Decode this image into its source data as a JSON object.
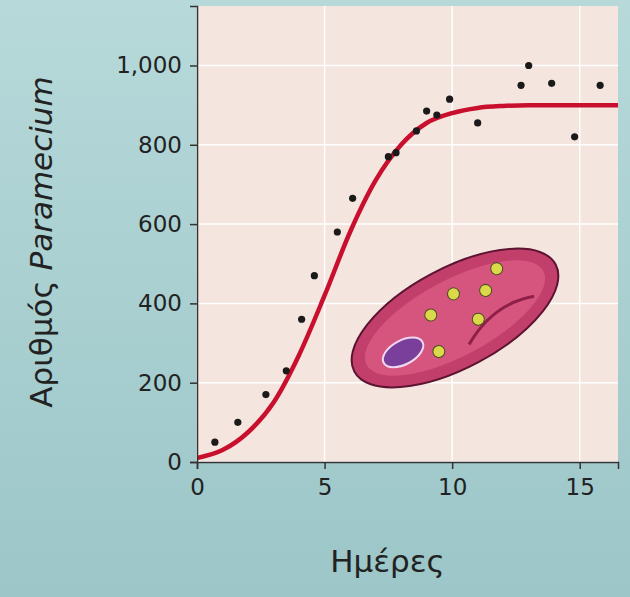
{
  "chart_data": {
    "type": "scatter",
    "x_label": "Ημέρες",
    "y_label": "Αριθμός Paramecium",
    "xlim": [
      0,
      16.5
    ],
    "xticks": [
      0,
      5,
      10,
      15
    ],
    "ylim": [
      0,
      1150
    ],
    "yticks": [
      0,
      200,
      400,
      600,
      800,
      {
        "value": 1000,
        "label": "1,000"
      }
    ],
    "grid": true,
    "series": [
      {
        "type": "scatter",
        "marker": "circle",
        "color": "#1a1a1a",
        "x": [
          0.7,
          1.6,
          2.7,
          3.5,
          4.1,
          4.6,
          5.5,
          6.1,
          7.5,
          7.8,
          8.6,
          9.0,
          9.4,
          9.9,
          11.0,
          12.7,
          13.0,
          13.9,
          14.8,
          15.8
        ],
        "values": [
          50,
          100,
          170,
          230,
          360,
          470,
          580,
          665,
          770,
          780,
          835,
          885,
          875,
          915,
          855,
          950,
          1000,
          955,
          820,
          950
        ]
      },
      {
        "type": "line",
        "line_style": "solid",
        "color": "#c8102e",
        "x": [
          0,
          1,
          2,
          3,
          4,
          5,
          6,
          7,
          8,
          9,
          10,
          11,
          12,
          13,
          14,
          15,
          16,
          16.5
        ],
        "values": [
          10,
          30,
          75,
          150,
          270,
          420,
          580,
          710,
          800,
          855,
          880,
          893,
          898,
          900,
          900,
          900,
          900,
          900
        ]
      }
    ]
  }
}
